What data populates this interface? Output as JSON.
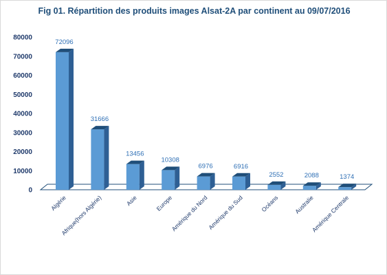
{
  "chart_data": {
    "type": "bar",
    "title": "Fig 01. Répartition des produits images  Alsat-2A par continent au 09/07/2016",
    "xlabel": "",
    "ylabel": "",
    "ylim": [
      0,
      80000
    ],
    "yticks": [
      "0",
      "10000",
      "20000",
      "30000",
      "40000",
      "50000",
      "60000",
      "70000",
      "80000"
    ],
    "categories": [
      "Algérie",
      "Afrique(hors Algérie)",
      "Asie",
      "Europe",
      "Amérique du Nord",
      "Amérique du Sud",
      "Océans",
      "Australie",
      "Amérique Centrale"
    ],
    "values": [
      72096,
      31666,
      13456,
      10308,
      6976,
      6916,
      2552,
      2088,
      1374
    ],
    "data_labels": [
      "72096",
      "31666",
      "13456",
      "10308",
      "6976",
      "6916",
      "2552",
      "2088",
      "1374"
    ],
    "grid": false,
    "legend": "none",
    "three_d": true,
    "colors": {
      "bar_front": "#5b9bd5",
      "bar_side": "#2e5f94",
      "bar_top": "#1f4e79",
      "title": "#1f4e79",
      "axis_text": "#1f3a6b",
      "data_label": "#2e6fb5"
    }
  }
}
